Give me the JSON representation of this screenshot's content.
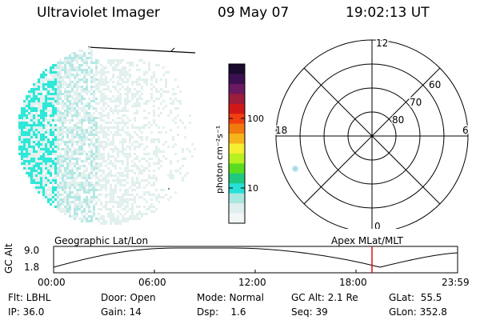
{
  "header": {
    "instrument": "Ultraviolet Imager",
    "date": "09 May 07",
    "time": "19:02:13 UT"
  },
  "colorbar": {
    "unit_label": "photon cm⁻²s⁻¹",
    "ticks": [
      "100",
      "10"
    ],
    "scale": "log",
    "colors_top_to_bottom": [
      "#1a0a2e",
      "#3b1050",
      "#6a1a60",
      "#9c1c3c",
      "#d01818",
      "#f04010",
      "#f07a10",
      "#f6b41c",
      "#f6ee30",
      "#b8f020",
      "#5adc20",
      "#20c880",
      "#28e0d8",
      "#a8e8e0",
      "#dfeeee",
      "#f2f6f6"
    ]
  },
  "polar_plot": {
    "mlt_labels": {
      "top": "12",
      "left": "18",
      "right": "6",
      "bottom": "0"
    },
    "lat_labels": [
      "60",
      "70",
      "80"
    ]
  },
  "timeline": {
    "left_title": "Geographic Lat/Lon",
    "right_title": "Apex MLat/MLT",
    "axis_label": "GC Alt",
    "y_ticks": [
      "9.0",
      "1.8"
    ],
    "x_ticks": [
      "00:00",
      "06:00",
      "12:00",
      "18:00",
      "23:59"
    ],
    "marker_color": "#e00000"
  },
  "status": {
    "flt": "Flt: LBHL",
    "ip": "IP: 36.0",
    "door": "Door: Open",
    "gain": "Gain: 14",
    "mode": "Mode: Normal",
    "dsp": "Dsp:    1.6",
    "gcalt": "GC Alt: 2.1 Re",
    "seq": "Seq: 39",
    "glat": "GLat:  55.5",
    "glon": "GLon: 352.8"
  },
  "colors": {
    "imager_cyan": "#2ee8d8",
    "imager_light": "#b4e8e4",
    "imager_pale": "#e2f0ee"
  }
}
